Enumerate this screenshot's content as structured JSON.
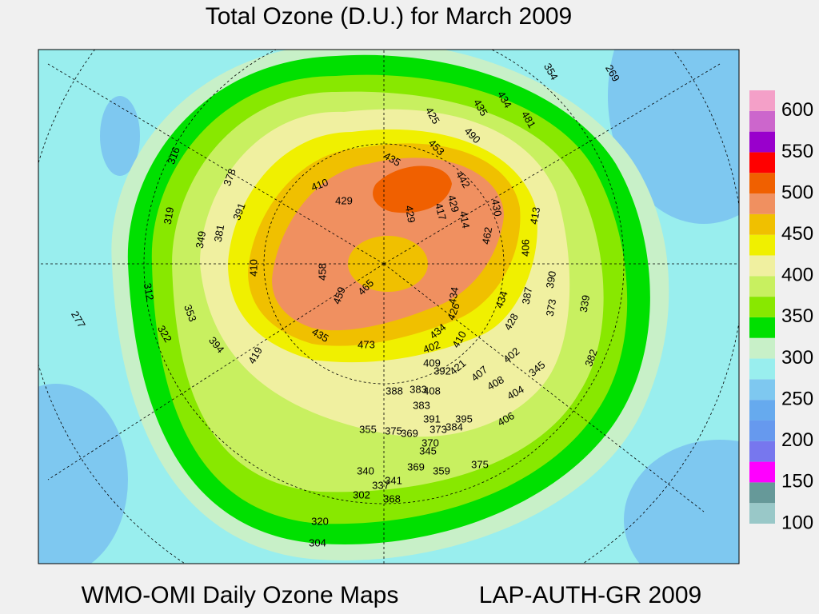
{
  "header": {
    "title": "Total Ozone (D.U.) for March 2009"
  },
  "footer": {
    "left": "WMO-OMI Daily Ozone Maps",
    "right": "LAP-AUTH-GR 2009"
  },
  "colorbar": {
    "bins": [
      100,
      125,
      150,
      175,
      200,
      225,
      250,
      275,
      300,
      325,
      350,
      375,
      400,
      425,
      450,
      475,
      500,
      525,
      550,
      575,
      600,
      625
    ],
    "colors": [
      "#99c8c8",
      "#669999",
      "#ff00ff",
      "#7777ee",
      "#6699ee",
      "#66aaee",
      "#7ec8f0",
      "#99eeee",
      "#c8f0c8",
      "#00e000",
      "#88e800",
      "#c8f060",
      "#f0f0a0",
      "#f0f000",
      "#f0c000",
      "#f09060",
      "#f06000",
      "#ff0000",
      "#9900cc",
      "#cc66cc",
      "#f4a0c8"
    ],
    "ticks": [
      100,
      150,
      200,
      250,
      300,
      350,
      400,
      450,
      500,
      550,
      600
    ]
  },
  "map": {
    "labels": [
      269,
      354,
      481,
      434,
      435,
      425,
      490,
      453,
      435,
      442,
      429,
      417,
      429,
      429,
      410,
      378,
      316,
      319,
      391,
      381,
      349,
      430,
      414,
      462,
      413,
      406,
      410,
      458,
      459,
      465,
      312,
      353,
      322,
      277,
      394,
      419,
      435,
      473,
      434,
      434,
      387,
      390,
      373,
      339,
      426,
      428,
      434,
      410,
      402,
      402,
      409,
      392,
      421,
      407,
      382,
      345,
      408,
      404,
      388,
      383,
      408,
      383,
      406,
      391,
      373,
      395,
      384,
      355,
      375,
      369,
      370,
      345,
      375,
      340,
      369,
      359,
      341,
      337,
      302,
      368,
      320,
      304
    ]
  }
}
